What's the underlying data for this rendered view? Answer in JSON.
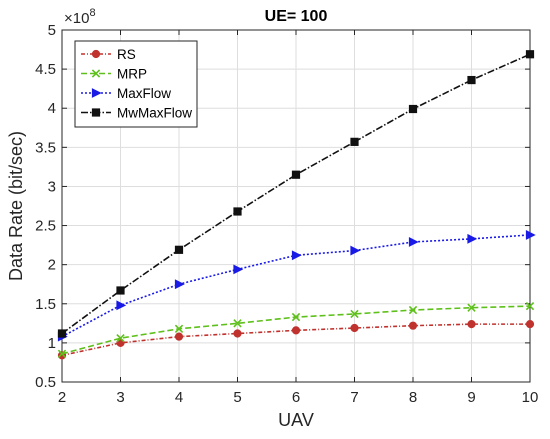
{
  "chart_data": {
    "type": "line",
    "title": "UE= 100",
    "xlabel": "UAV",
    "ylabel": "Data Rate (bit/sec)",
    "y_multiplier_base": "×10",
    "y_multiplier_exp": "8",
    "x": [
      2,
      3,
      4,
      5,
      6,
      7,
      8,
      9,
      10
    ],
    "xlim": [
      2,
      10
    ],
    "ylim": [
      0.5,
      5
    ],
    "xticks": [
      "2",
      "3",
      "4",
      "5",
      "6",
      "7",
      "8",
      "9",
      "10"
    ],
    "yticks": [
      "0.5",
      "1",
      "1.5",
      "2",
      "2.5",
      "3",
      "3.5",
      "4",
      "4.5",
      "5"
    ],
    "grid": true,
    "legend_position": "top-left",
    "series": [
      {
        "name": "RS",
        "color": "#c0322e",
        "marker": "circle",
        "dash": "4,2,1,2",
        "values": [
          0.84,
          1.0,
          1.08,
          1.12,
          1.16,
          1.19,
          1.22,
          1.24,
          1.24
        ]
      },
      {
        "name": "MRP",
        "color": "#5ec01a",
        "marker": "x",
        "dash": "6,3",
        "values": [
          0.86,
          1.06,
          1.18,
          1.25,
          1.33,
          1.37,
          1.42,
          1.45,
          1.47
        ]
      },
      {
        "name": "MaxFlow",
        "color": "#1a1ae6",
        "marker": "triangle-right",
        "dash": "2,2",
        "values": [
          1.08,
          1.48,
          1.75,
          1.94,
          2.12,
          2.18,
          2.29,
          2.33,
          2.38
        ]
      },
      {
        "name": "MwMaxFlow",
        "color": "#111111",
        "marker": "square",
        "dash": "7,2,1.5,2",
        "values": [
          1.12,
          1.67,
          2.19,
          2.68,
          3.15,
          3.57,
          3.99,
          4.36,
          4.69
        ]
      }
    ]
  }
}
